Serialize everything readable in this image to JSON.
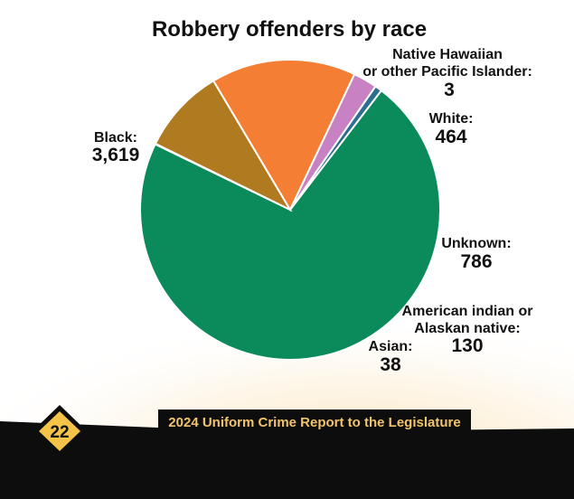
{
  "chart_data": {
    "type": "pie",
    "title": "Robbery offenders by race",
    "slices": [
      {
        "label": "Black:",
        "value": 3619,
        "display": "3,619",
        "color": "#0b8a5c"
      },
      {
        "label": "Native Hawaiian or other Pacific Islander:",
        "value": 3,
        "display": "3",
        "color": "#2e8f73"
      },
      {
        "label": "White:",
        "value": 464,
        "display": "464",
        "color": "#b07a21"
      },
      {
        "label": "Unknown:",
        "value": 786,
        "display": "786",
        "color": "#f47e34"
      },
      {
        "label": "American indian or Alaskan native:",
        "value": 130,
        "display": "130",
        "color": "#c882c4"
      },
      {
        "label": "Asian:",
        "value": 38,
        "display": "38",
        "color": "#2b6e8f"
      }
    ]
  },
  "labels": {
    "black_name": "Black:",
    "black_value": "3,619",
    "nhpi_line1": "Native Hawaiian",
    "nhpi_line2": "or other Pacific Islander:",
    "nhpi_value": "3",
    "white_name": "White:",
    "white_value": "464",
    "unknown_name": "Unknown:",
    "unknown_value": "786",
    "aian_line1": "American indian or",
    "aian_line2": "Alaskan native:",
    "aian_value": "130",
    "asian_name": "Asian:",
    "asian_value": "38"
  },
  "footer": {
    "report_title": "2024 Uniform Crime Report to the Legislature",
    "page_number": "22"
  },
  "colors": {
    "footer_band": "#0d0d0d",
    "footer_text": "#f2c46b",
    "badge": "#f5c347",
    "background_glow": "#fbe8c4"
  }
}
